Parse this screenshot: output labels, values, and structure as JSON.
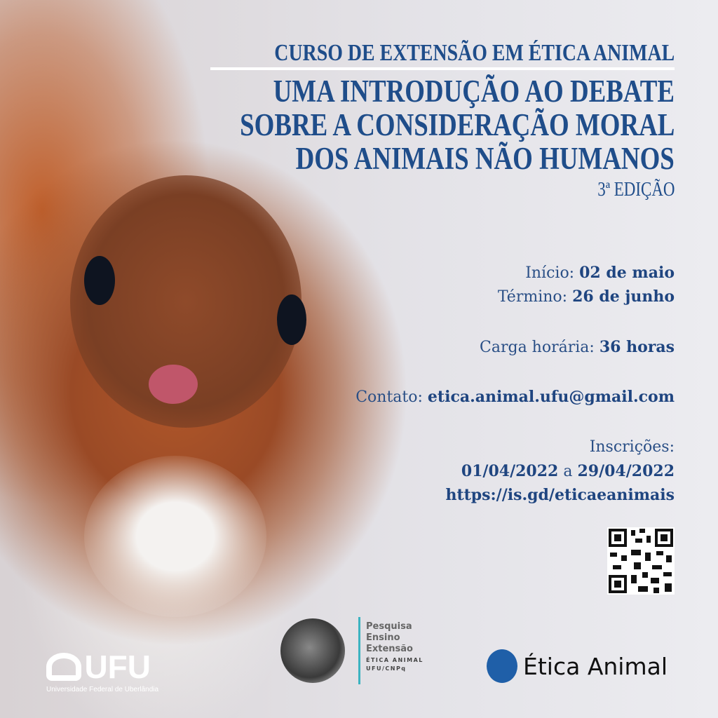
{
  "header": {
    "course": "CURSO DE EXTENSÃO EM ÉTICA ANIMAL",
    "title_lines": [
      "UMA INTRODUÇÃO AO DEBATE",
      "SOBRE A CONSIDERAÇÃO MORAL",
      "DOS ANIMAIS NÃO HUMANOS"
    ],
    "edition": "3ª EDIÇÃO"
  },
  "details": {
    "start_label": "Início:",
    "start_value": "02 de maio",
    "end_label": "Término:",
    "end_value": "26 de junho",
    "hours_label": "Carga horária:",
    "hours_value": "36 horas",
    "contact_label": "Contato:",
    "contact_value": "etica.animal.ufu@gmail.com",
    "registration_label": "Inscrições:",
    "registration_from": "01/04/2022",
    "registration_sep": "a",
    "registration_to": "29/04/2022",
    "link": "https://is.gd/eticaeanimais"
  },
  "footer": {
    "ufu_logo": "UFU",
    "ufu_subtitle": "Universidade Federal de Uberlândia",
    "group_lines": [
      "Pesquisa",
      "Ensino",
      "Extensão"
    ],
    "group_name": "ÉTICA ANIMAL",
    "group_org": "UFU/CNPq",
    "etica_logo": "Ética Animal"
  },
  "colors": {
    "text": "#1f4d8a",
    "accent_line": "#3bb3c0"
  }
}
